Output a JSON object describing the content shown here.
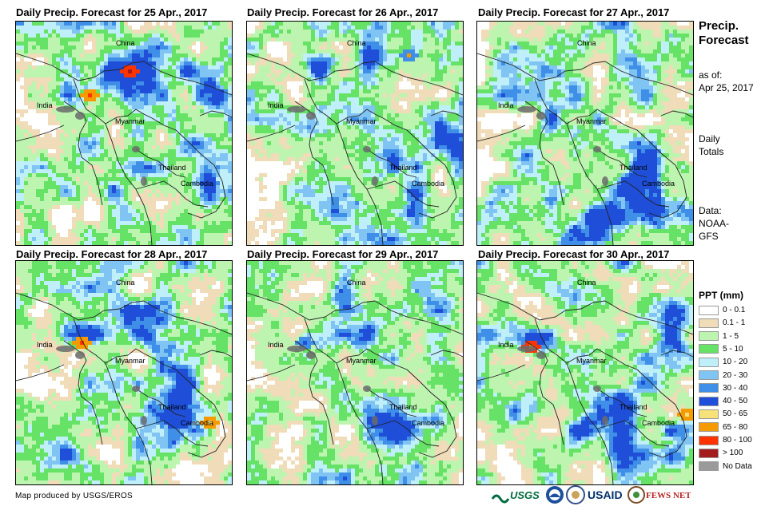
{
  "panels": [
    {
      "title": "Daily Precip. Forecast for 25 Apr., 2017"
    },
    {
      "title": "Daily Precip. Forecast for 26 Apr., 2017"
    },
    {
      "title": "Daily Precip. Forecast for 27 Apr., 2017"
    },
    {
      "title": "Daily Precip. Forecast for 28 Apr., 2017"
    },
    {
      "title": "Daily Precip. Forecast for 29 Apr., 2017"
    },
    {
      "title": "Daily Precip. Forecast for 30 Apr., 2017"
    }
  ],
  "map_labels": {
    "china": "China",
    "india": "India",
    "myanmar": "Myanmar",
    "thailand": "Thailand",
    "cambodia": "Cambodia"
  },
  "sidebar": {
    "title_line1": "Precip.",
    "title_line2": "Forecast",
    "asof_label": "as of:",
    "asof_date": "Apr 25, 2017",
    "totals_line1": "Daily",
    "totals_line2": "Totals",
    "data_line1": "Data:",
    "data_line2": "NOAA-",
    "data_line3": "GFS"
  },
  "legend": {
    "title": "PPT (mm)",
    "items": [
      {
        "label": "0 - 0.1",
        "color": "#ffffff"
      },
      {
        "label": "0.1 - 1",
        "color": "#f0dcb8"
      },
      {
        "label": "1 - 5",
        "color": "#bdf5b0"
      },
      {
        "label": "5 - 10",
        "color": "#66e266"
      },
      {
        "label": "10 - 20",
        "color": "#bfeff9"
      },
      {
        "label": "20 - 30",
        "color": "#80c4f4"
      },
      {
        "label": "30 - 40",
        "color": "#3f8fe8"
      },
      {
        "label": "40 - 50",
        "color": "#1f4fd8"
      },
      {
        "label": "50 - 65",
        "color": "#f7e27a"
      },
      {
        "label": "65 - 80",
        "color": "#f59a00"
      },
      {
        "label": "80 - 100",
        "color": "#ff3300"
      },
      {
        "label": "> 100",
        "color": "#a31d1d"
      },
      {
        "label": "No Data",
        "color": "#9a9a9a"
      }
    ]
  },
  "credit": "Map produced by USGS/EROS",
  "logos": {
    "usgs": "USGS",
    "usaid": "USAID",
    "fewsnet": "FEWS NET"
  }
}
